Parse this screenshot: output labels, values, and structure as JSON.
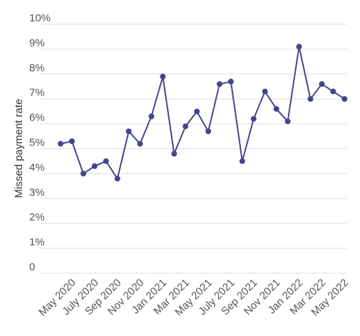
{
  "chart_data": {
    "type": "line",
    "title": "",
    "xlabel": "",
    "ylabel": "Missed payment rate",
    "ylim": [
      0,
      10
    ],
    "y_ticks": [
      "0",
      "1%",
      "2%",
      "3%",
      "4%",
      "5%",
      "6%",
      "7%",
      "8%",
      "9%",
      "10%"
    ],
    "x_tick_labels": [
      "May 2020",
      "July 2020",
      "Sep 2020",
      "Nov 2020",
      "Jan 2021",
      "Mar 2021",
      "May 2021",
      "July 2021",
      "Sep 2021",
      "Nov 2021",
      "Jan 2022",
      "Mar 2022",
      "May 2022"
    ],
    "grid": true,
    "colors": {
      "series": "#45458e",
      "grid": "#dddddd"
    },
    "series": [
      {
        "x": [
          "Apr 2020",
          "May 2020",
          "Jun 2020",
          "Jul 2020",
          "Aug 2020",
          "Sep 2020",
          "Oct 2020",
          "Nov 2020",
          "Dec 2020",
          "Jan 2021",
          "Feb 2021",
          "Mar 2021",
          "Apr 2021",
          "May 2021",
          "Jun 2021",
          "Jul 2021",
          "Aug 2021",
          "Sep 2021",
          "Oct 2021",
          "Nov 2021",
          "Dec 2021",
          "Jan 2022",
          "Feb 2022",
          "Mar 2022",
          "Apr 2022",
          "May 2022"
        ],
        "values": [
          5.2,
          5.3,
          4.0,
          4.3,
          4.5,
          3.8,
          5.7,
          5.2,
          6.3,
          7.9,
          4.8,
          5.9,
          6.5,
          5.7,
          7.6,
          7.7,
          4.5,
          6.2,
          7.3,
          6.6,
          6.1,
          9.1,
          7.0,
          7.6,
          7.3,
          7.0
        ]
      }
    ]
  }
}
